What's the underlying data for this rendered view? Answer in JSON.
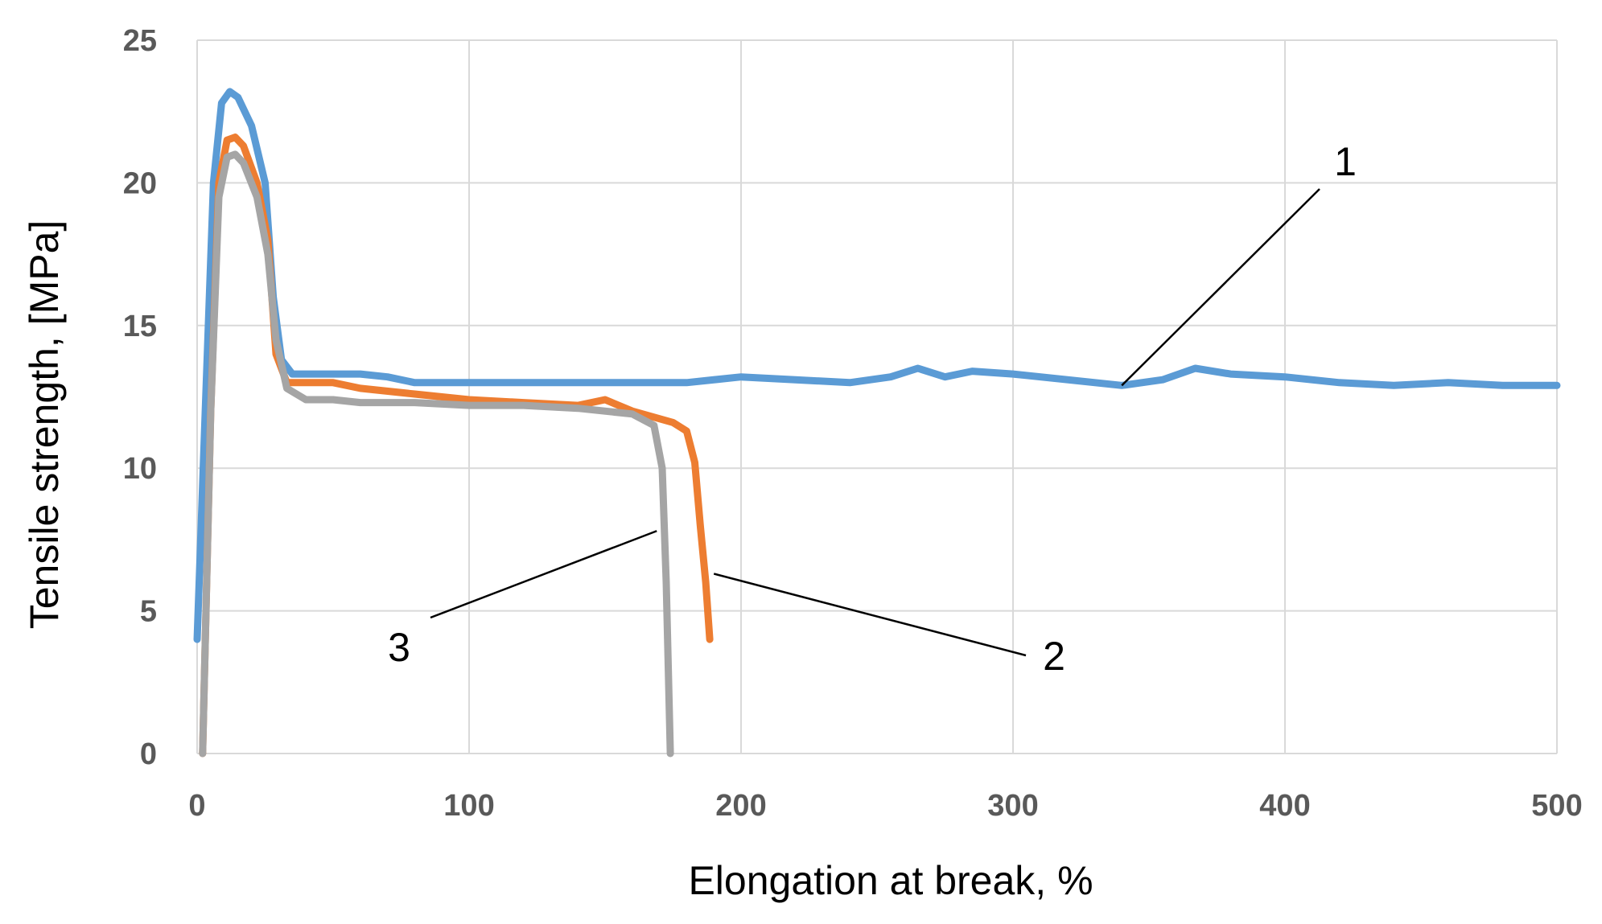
{
  "chart_data": {
    "type": "line",
    "title": "",
    "xlabel": "Elongation at break, %",
    "ylabel": "Tensile strength, [MPa]",
    "xlim": [
      0,
      500
    ],
    "ylim": [
      0,
      25
    ],
    "xticks": [
      0,
      100,
      200,
      300,
      400,
      500
    ],
    "yticks": [
      0,
      5,
      10,
      15,
      20,
      25
    ],
    "grid": true,
    "series": [
      {
        "name": "1",
        "color": "#5b9bd5",
        "x": [
          0,
          3,
          6,
          9,
          12,
          15,
          20,
          25,
          28,
          31,
          35,
          40,
          50,
          60,
          70,
          80,
          100,
          120,
          140,
          160,
          180,
          200,
          220,
          240,
          255,
          265,
          275,
          285,
          300,
          320,
          340,
          355,
          367,
          380,
          400,
          420,
          440,
          460,
          480,
          500
        ],
        "y": [
          4.0,
          12.0,
          20.0,
          22.8,
          23.2,
          23.0,
          22.0,
          20.0,
          16.0,
          13.8,
          13.3,
          13.3,
          13.3,
          13.3,
          13.2,
          13.0,
          13.0,
          13.0,
          13.0,
          13.0,
          13.0,
          13.2,
          13.1,
          13.0,
          13.2,
          13.5,
          13.2,
          13.4,
          13.3,
          13.1,
          12.9,
          13.1,
          13.5,
          13.3,
          13.2,
          13.0,
          12.9,
          13.0,
          12.9,
          12.9
        ]
      },
      {
        "name": "2",
        "color": "#ed7d31",
        "x": [
          2,
          5,
          8,
          11,
          14,
          17,
          22,
          26,
          29,
          33,
          40,
          50,
          60,
          80,
          100,
          120,
          140,
          150,
          160,
          175,
          180,
          183,
          185,
          187,
          188.5
        ],
        "y": [
          0.0,
          12.0,
          20.0,
          21.5,
          21.6,
          21.3,
          20.0,
          18.0,
          14.0,
          13.0,
          13.0,
          13.0,
          12.8,
          12.6,
          12.4,
          12.3,
          12.2,
          12.4,
          12.0,
          11.6,
          11.3,
          10.2,
          8.0,
          6.0,
          4.0
        ]
      },
      {
        "name": "3",
        "color": "#a5a5a5",
        "x": [
          2,
          5,
          8,
          11,
          14,
          17,
          22,
          26,
          29,
          33,
          40,
          50,
          60,
          80,
          100,
          120,
          140,
          160,
          168,
          171,
          172.5,
          173.5,
          174
        ],
        "y": [
          0.0,
          12.0,
          19.5,
          20.9,
          21.0,
          20.7,
          19.5,
          17.5,
          14.5,
          12.8,
          12.4,
          12.4,
          12.3,
          12.3,
          12.2,
          12.2,
          12.1,
          11.9,
          11.5,
          10.0,
          6.0,
          2.0,
          0.0
        ]
      }
    ],
    "annotations": [
      {
        "text": "1",
        "series": "1",
        "point": [
          340,
          12.9
        ]
      },
      {
        "text": "2",
        "series": "2",
        "point": [
          190,
          6.3
        ]
      },
      {
        "text": "3",
        "series": "3",
        "point": [
          169,
          7.8
        ]
      }
    ]
  }
}
